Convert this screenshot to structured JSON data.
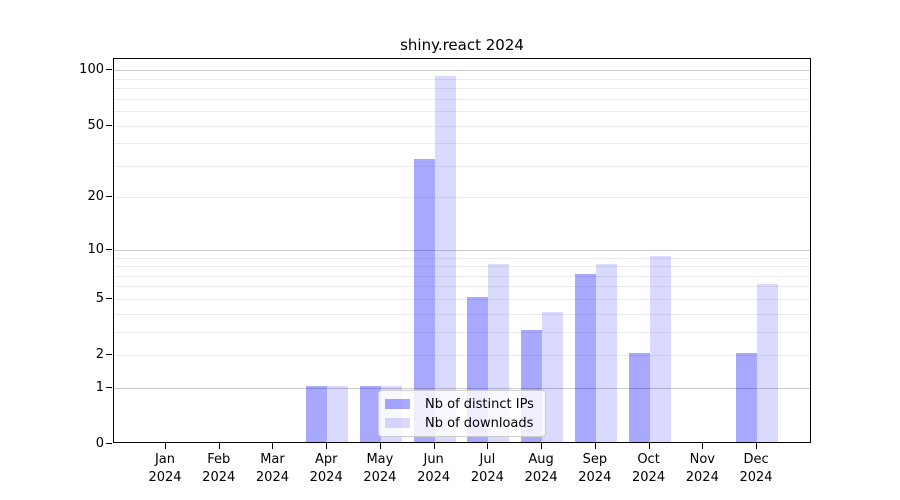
{
  "title": "shiny.react 2024",
  "chart_data": {
    "type": "bar",
    "title": "shiny.react 2024",
    "xlabel": "",
    "ylabel": "",
    "y_scale": "log1p",
    "ylim": [
      0,
      115
    ],
    "grid": "horizontal",
    "legend_position": "inside lower-center",
    "categories": [
      "Jan",
      "Feb",
      "Mar",
      "Apr",
      "May",
      "Jun",
      "Jul",
      "Aug",
      "Sep",
      "Oct",
      "Nov",
      "Dec"
    ],
    "x_tick_year_line": "2024",
    "series": [
      {
        "name": "Nb of distinct IPs",
        "color": "rgba(0,0,255,0.34)",
        "values": [
          0,
          0,
          0,
          1,
          1,
          32,
          5,
          3,
          7,
          2,
          0,
          2
        ]
      },
      {
        "name": "Nb of downloads",
        "color": "rgba(0,0,255,0.145)",
        "values": [
          0,
          0,
          0,
          1,
          1,
          91,
          8,
          4,
          8,
          9,
          0,
          6
        ]
      }
    ],
    "y_ticks": [
      0,
      1,
      2,
      5,
      10,
      20,
      50,
      100
    ],
    "y_major_gridlines": [
      1,
      10,
      100
    ],
    "y_minor_gridlines": [
      2,
      3,
      4,
      5,
      6,
      7,
      8,
      9,
      20,
      30,
      40,
      50,
      60,
      70,
      80,
      90
    ]
  },
  "colors": {
    "bar_distinct_ips_on_white": "#a9a9fb",
    "bar_downloads_on_white": "#d9d9fb",
    "major_gridline": "#cccccc",
    "minor_gridline": "#ededed",
    "axis": "#000000",
    "legend_border": "#cccccc"
  }
}
